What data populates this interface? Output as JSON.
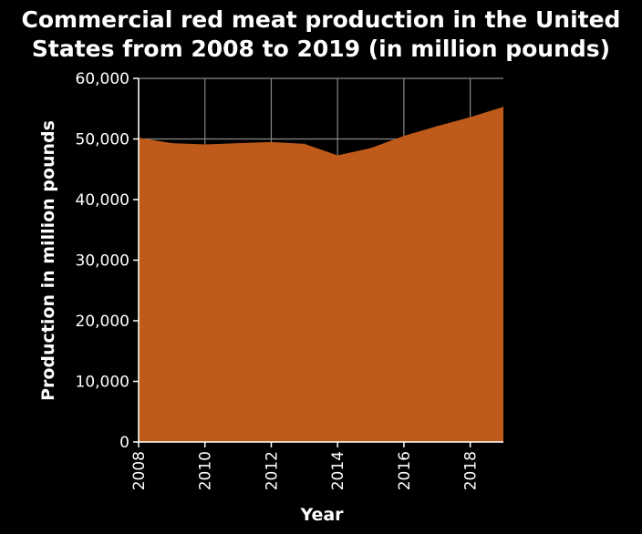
{
  "chart_data": {
    "type": "area",
    "title_lines": [
      "Commercial red meat production in the United",
      "States from 2008 to 2019 (in million pounds)"
    ],
    "xlabel": "Year",
    "ylabel": "Production in million pounds",
    "x": [
      2008,
      2009,
      2010,
      2011,
      2012,
      2013,
      2014,
      2015,
      2016,
      2017,
      2018,
      2019
    ],
    "y": [
      50200,
      49300,
      49100,
      49300,
      49500,
      49200,
      47300,
      48500,
      50500,
      52100,
      53600,
      55300
    ],
    "xlim": [
      2008,
      2019
    ],
    "ylim": [
      0,
      60000
    ],
    "x_ticks": [
      2008,
      2010,
      2012,
      2014,
      2016,
      2018
    ],
    "x_tick_labels": [
      "2008",
      "2010",
      "2012",
      "2014",
      "2016",
      "2018"
    ],
    "y_ticks": [
      0,
      10000,
      20000,
      30000,
      40000,
      50000,
      60000
    ],
    "y_tick_labels": [
      "0",
      "10,000",
      "20,000",
      "30,000",
      "40,000",
      "50,000",
      "60,000"
    ],
    "grid": true,
    "legend": false,
    "colors": {
      "area": "#c05a1b",
      "background": "#000000",
      "grid": "#888888",
      "text": "#ffffff"
    }
  }
}
